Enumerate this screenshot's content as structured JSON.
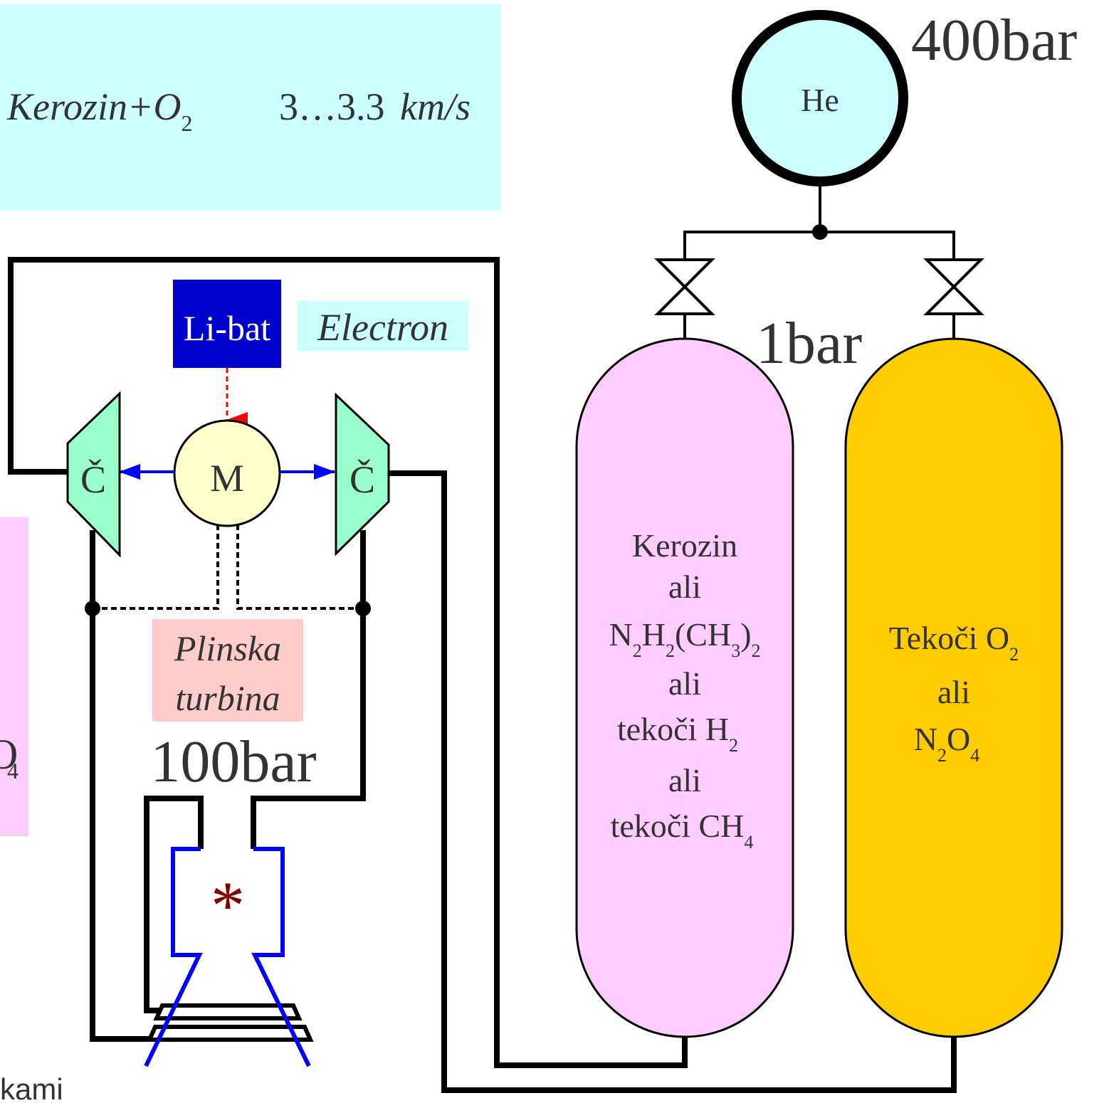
{
  "header_box": {
    "formula_prefix": "Kerozin+O",
    "formula_sub": "2",
    "speed_text": "3…3.3",
    "unit_text": "km/s"
  },
  "left_fragment": {
    "sub_text": "4",
    "big_glyph": "O",
    "bottom_text": "kami"
  },
  "helium": {
    "label": "He",
    "pressure": "400bar"
  },
  "tank_pressure": "1bar",
  "battery": {
    "label": "Li-bat",
    "name": "Electron"
  },
  "motor": {
    "label": "M"
  },
  "pump_left": {
    "label": "Č"
  },
  "pump_right": {
    "label": "Č"
  },
  "gas_turbine": {
    "line1": "Plinska",
    "line2": "turbina"
  },
  "chamber_pressure": "100bar",
  "chamber_symbol": "*",
  "fuel_tank": {
    "line1": "Kerozin",
    "line2": "ali",
    "line3_parts": [
      "N",
      "2",
      "H",
      "2",
      "(CH",
      "3",
      ")",
      "2"
    ],
    "line4": "ali",
    "line5_main": "tekoči H",
    "line5_sub": "2",
    "line6": "ali",
    "line7_main": "tekoči CH",
    "line7_sub": "4"
  },
  "oxidizer_tank": {
    "line1_main": "Tekoči O",
    "line1_sub": "2",
    "line2": "ali",
    "line3_parts": [
      "N",
      "2",
      "O",
      "4"
    ]
  },
  "colors": {
    "header_bg": "#ccffff",
    "fuel_tank": "#ffccff",
    "oxidizer_tank": "#ffcc00",
    "battery": "#0000cc",
    "motor": "#ffffcc",
    "pump": "#99ffcc",
    "turbine_label_bg": "#ffcccc",
    "helium": "#ccffff",
    "nozzle": "#0000ff"
  }
}
